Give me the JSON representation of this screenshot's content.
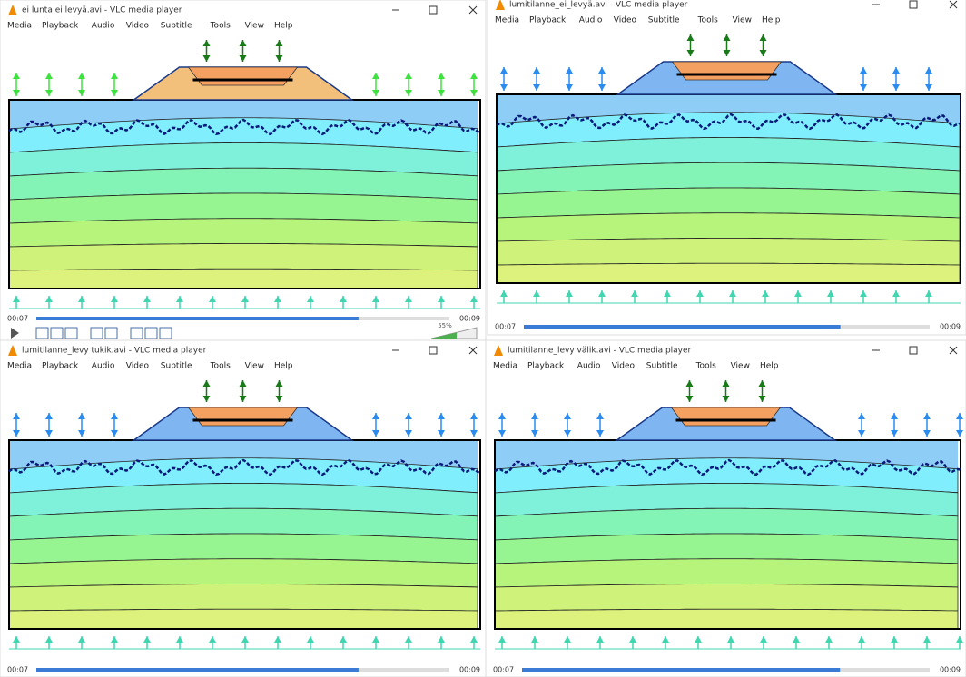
{
  "windows": [
    {
      "title": "ei lunta ei levyä.avi - VLC media player",
      "menu": [
        "Media",
        "Playback",
        "Audio",
        "Video",
        "Subtitle",
        "Tools",
        "View",
        "Help"
      ],
      "time_elapsed": "00:07",
      "time_total": "00:09",
      "volume": "55%"
    },
    {
      "title": "lumitilanne_ei_levyä.avi - VLC media player",
      "menu": [
        "Media",
        "Playback",
        "Audio",
        "Video",
        "Subtitle",
        "Tools",
        "View",
        "Help"
      ],
      "time_elapsed": "00:07",
      "time_total": "00:09"
    },
    {
      "title": "lumitilanne_levy tukik.avi - VLC media player",
      "menu": [
        "Media",
        "Playback",
        "Audio",
        "Video",
        "Subtitle",
        "Tools",
        "View",
        "Help"
      ],
      "time_elapsed": "00:07",
      "time_total": "00:09"
    },
    {
      "title": "lumitilanne_levy välik.avi - VLC media player",
      "menu": [
        "Media",
        "Playback",
        "Audio",
        "Video",
        "Subtitle",
        "Tools",
        "View",
        "Help"
      ],
      "time_elapsed": "00:07",
      "time_total": "00:09"
    }
  ]
}
